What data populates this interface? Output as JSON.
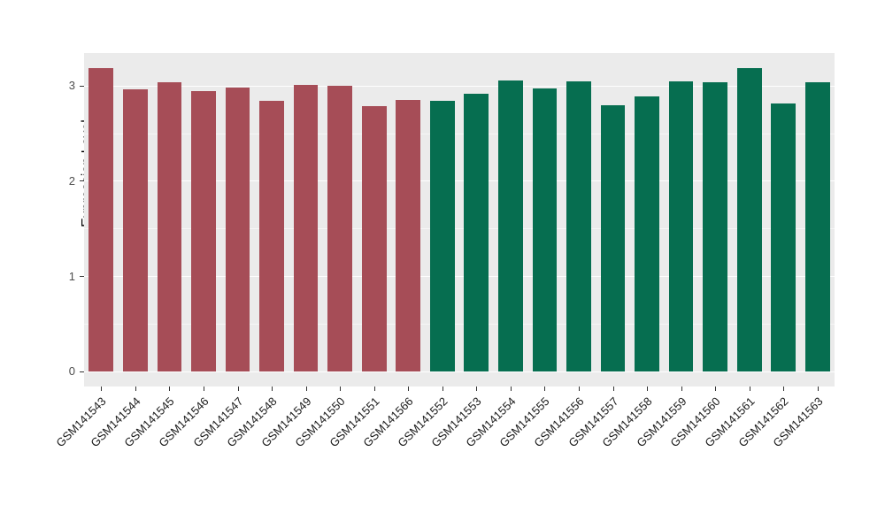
{
  "chart_data": {
    "type": "bar",
    "title": "",
    "xlabel": "",
    "ylabel": "Expression Level",
    "legend_position": "none",
    "panel_background": "#EBEBEB",
    "gridline_color": "#FFFFFF",
    "categories": [
      "GSM141543",
      "GSM141544",
      "GSM141545",
      "GSM141546",
      "GSM141547",
      "GSM141548",
      "GSM141549",
      "GSM141550",
      "GSM141551",
      "GSM141566",
      "GSM141552",
      "GSM141553",
      "GSM141554",
      "GSM141555",
      "GSM141556",
      "GSM141557",
      "GSM141558",
      "GSM141559",
      "GSM141560",
      "GSM141561",
      "GSM141562",
      "GSM141563"
    ],
    "values": [
      3.18,
      2.96,
      3.03,
      2.94,
      2.98,
      2.84,
      3.01,
      3.0,
      2.78,
      2.85,
      2.84,
      2.91,
      3.05,
      2.97,
      3.04,
      2.79,
      2.89,
      3.04,
      3.03,
      3.18,
      2.81,
      3.03
    ],
    "groups": [
      {
        "color": "#A64D57",
        "start_index": 0,
        "end_index": 9
      },
      {
        "color": "#066E50",
        "start_index": 10,
        "end_index": 21
      }
    ],
    "y_ticks": [
      0,
      1,
      2,
      3
    ],
    "y_minor_ticks": [
      0.5,
      1.5,
      2.5
    ],
    "ylim": [
      -0.16,
      3.34
    ]
  }
}
